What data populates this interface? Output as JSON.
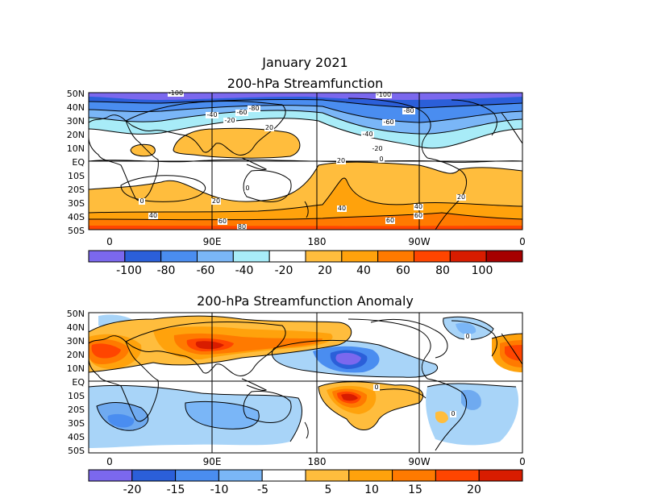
{
  "figure": {
    "title": "January 2021",
    "top_panel_title": "200-hPa Streamfunction",
    "bottom_panel_title": "200-hPa Streamfunction Anomaly"
  },
  "lat_labels": [
    "50N",
    "40N",
    "30N",
    "20N",
    "10N",
    "EQ",
    "10S",
    "20S",
    "30S",
    "40S",
    "50S"
  ],
  "lon_labels": [
    "0",
    "90E",
    "180",
    "90W",
    "0"
  ],
  "top_map": {
    "contour_labels": [
      "-100",
      "-80",
      "-60",
      "-40",
      "-20",
      "-20",
      "-40",
      "-60",
      "-80",
      "-100",
      "20",
      "20",
      "20",
      "20",
      "40",
      "40",
      "40",
      "60",
      "60",
      "60",
      "80",
      "0",
      "0",
      "0"
    ],
    "colorbar": {
      "tick_labels": [
        "-100",
        "-80",
        "-60",
        "-40",
        "-20",
        "20",
        "40",
        "60",
        "80",
        "100"
      ],
      "colors": [
        "#7b68ee",
        "#2b5fd9",
        "#4a8df0",
        "#7ab6f7",
        "#a8ecf8",
        "#ffffff",
        "#ffbd3d",
        "#ffa20c",
        "#ff7a00",
        "#ff4500",
        "#d81c00",
        "#a60000"
      ]
    }
  },
  "bottom_map": {
    "contour_labels": [
      "0",
      "0",
      "0"
    ],
    "colorbar": {
      "tick_labels": [
        "-20",
        "-15",
        "-10",
        "-5",
        "5",
        "10",
        "15",
        "20"
      ],
      "colors": [
        "#7b68ee",
        "#2b5fd9",
        "#4a8df0",
        "#7ab6f7",
        "#ffffff",
        "#ffbd3d",
        "#ffa20c",
        "#ff7a00",
        "#ff4500",
        "#d81c00"
      ]
    }
  }
}
